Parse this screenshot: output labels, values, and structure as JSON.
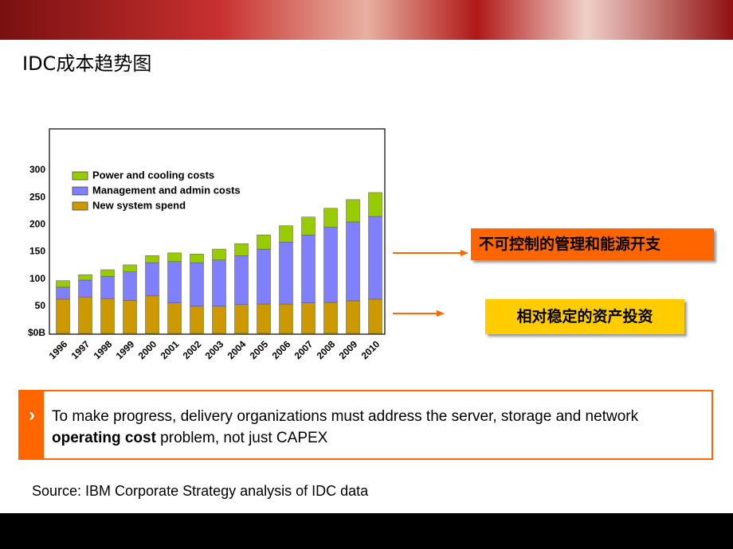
{
  "title": "IDC成本趋势图",
  "chart_data": {
    "type": "stacked-bar",
    "categories": [
      "1996",
      "1997",
      "1998",
      "1999",
      "2000",
      "2001",
      "2002",
      "2003",
      "2004",
      "2005",
      "2006",
      "2007",
      "2008",
      "2009",
      "2010"
    ],
    "series": [
      {
        "name": "New system spend",
        "color": "#cc9900",
        "values": [
          63,
          67,
          64,
          61,
          69,
          56,
          50,
          50,
          53,
          54,
          54,
          56,
          57,
          60,
          63
        ]
      },
      {
        "name": "Management and admin costs",
        "color": "#8080ff",
        "values": [
          22,
          31,
          41,
          52,
          61,
          76,
          80,
          85,
          90,
          101,
          114,
          125,
          138,
          145,
          152
        ]
      },
      {
        "name": "Power and cooling costs",
        "color": "#99cc00",
        "values": [
          12,
          10,
          12,
          13,
          13,
          16,
          16,
          20,
          22,
          26,
          30,
          33,
          35,
          41,
          44
        ]
      }
    ],
    "ylim": [
      0,
      376
    ],
    "yticks": [
      {
        "value": 0,
        "label": "$0B"
      },
      50,
      100,
      150,
      200,
      250,
      300
    ]
  },
  "callouts": [
    "不可控制的管理和能源开支",
    "相对稳定的资产投资"
  ],
  "note": {
    "before": "To make progress, delivery organizations must address the server, storage and network ",
    "bold": "operating cost",
    "after": " problem, not just CAPEX"
  },
  "source": "Source: IBM Corporate Strategy analysis of IDC data"
}
